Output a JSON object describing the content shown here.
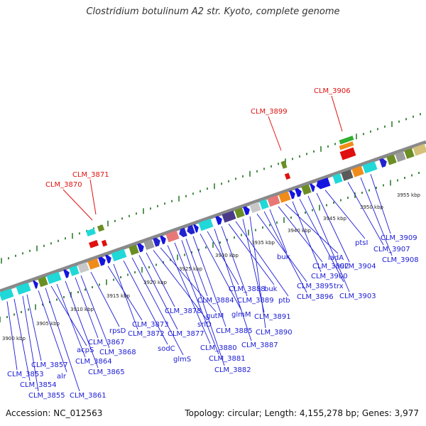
{
  "title": "Clostridium botulinum A2 str. Kyoto, complete genome",
  "accession": "Accession: NC_012563",
  "topology": "Topology: circular; Length: 4,155,278 bp; Genes: 3,977",
  "colors": {
    "lower_labels": "#1a1ad6",
    "upper_labels": "#e01010",
    "tick": "#2f7d2f",
    "backbone": "#888888"
  },
  "kbp_ticks": [
    "3900 kbp",
    "3905 kbp",
    "3910 kbp",
    "3915 kbp",
    "3920 kbp",
    "3925 kbp",
    "3930 kbp",
    "3935 kbp",
    "3940 kbp",
    "3945 kbp",
    "3950 kbp",
    "3955 kbp"
  ],
  "upper_genes": [
    "CLM_3870",
    "CLM_3871",
    "CLM_3899",
    "CLM_3906"
  ],
  "lower_genes": [
    "CLM_3853",
    "CLM_3854",
    "CLM_3855",
    "CLM_3857",
    "alr",
    "CLM_3861",
    "acpS",
    "CLM_3864",
    "CLM_3865",
    "CLM_3867",
    "CLM_3868",
    "rpsD",
    "CLM_3873",
    "CLM_3872",
    "sodC",
    "glmS",
    "CLM_3877",
    "CLM_3878",
    "srlD",
    "gutM",
    "CLM_3880",
    "CLM_3881",
    "CLM_3882",
    "CLM_3884",
    "CLM_3885",
    "glmM",
    "CLM_3888",
    "CLM_3887",
    "CLM_3889",
    "buk",
    "ptb",
    "CLM_3891",
    "CLM_3890",
    "CLM_3895",
    "CLM_3896",
    "buk",
    "CLM_3897",
    "iadA",
    "CLM_3900",
    "trx",
    "CLM_3903",
    "CLM_3904",
    "ptsI",
    "CLM_3907",
    "CLM_3908",
    "CLM_3909"
  ]
}
